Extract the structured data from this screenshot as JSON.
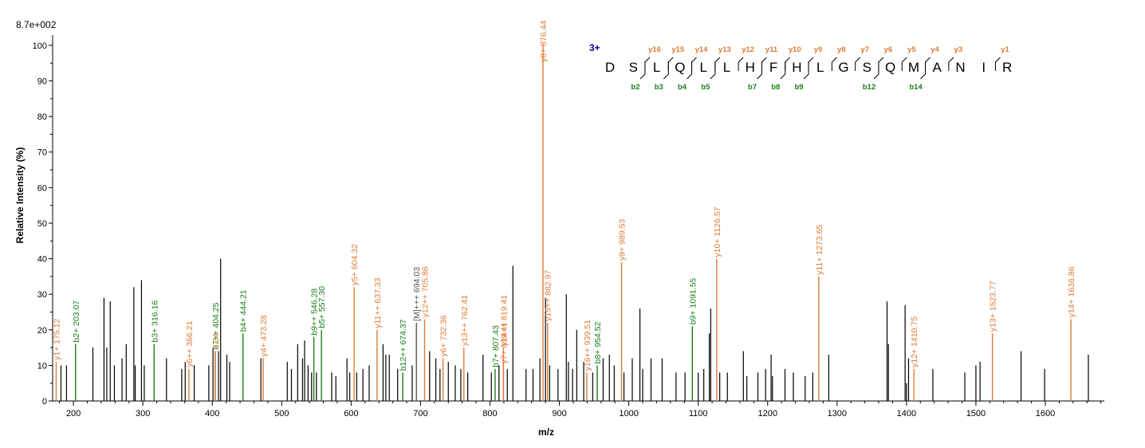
{
  "colors": {
    "y_ion": "#e07b39",
    "b_ion": "#1a7f1a",
    "unmatched": "#000000",
    "precursor": "#555555",
    "charge": "#00008b"
  },
  "chart_data": {
    "type": "bar",
    "max_intensity_label": "8.7e+002",
    "xlabel": "m/z",
    "ylabel": "Relative   Intensity (%)",
    "xlim": [
      170,
      1685
    ],
    "ylim": [
      0,
      102
    ],
    "x_ticks": [
      200,
      300,
      400,
      500,
      600,
      700,
      800,
      900,
      1000,
      1100,
      1200,
      1300,
      1400,
      1500,
      1600
    ],
    "y_ticks": [
      0,
      10,
      20,
      30,
      40,
      50,
      60,
      70,
      80,
      90,
      100
    ],
    "annotated_peaks": [
      {
        "mz": 175.12,
        "intensity": 11,
        "type": "y",
        "label": "y1+ 175.12"
      },
      {
        "mz": 203.07,
        "intensity": 16,
        "type": "b",
        "label": "b2+ 203.07"
      },
      {
        "mz": 316.16,
        "intensity": 16,
        "type": "b",
        "label": "b3+ 316.16"
      },
      {
        "mz": 366.21,
        "intensity": 9,
        "type": "y",
        "label": "y6++ 366.21"
      },
      {
        "mz": 404.25,
        "intensity": 14,
        "type": "b",
        "label": "b7++ 404.25"
      },
      {
        "mz": 404.25,
        "intensity": 14,
        "type": "y",
        "label": "2.24"
      },
      {
        "mz": 444.21,
        "intensity": 19,
        "type": "b",
        "label": "b4+ 444.21"
      },
      {
        "mz": 473.28,
        "intensity": 12,
        "type": "y",
        "label": "y4+ 473.28"
      },
      {
        "mz": 546.28,
        "intensity": 18,
        "type": "b",
        "label": "b9++ 546.28"
      },
      {
        "mz": 557.3,
        "intensity": 20,
        "type": "b",
        "label": "b5+ 557.30"
      },
      {
        "mz": 604.32,
        "intensity": 32,
        "type": "y",
        "label": "y5+ 604.32"
      },
      {
        "mz": 637.33,
        "intensity": 20,
        "type": "y",
        "label": "y11++ 637.33"
      },
      {
        "mz": 674.37,
        "intensity": 8,
        "type": "b",
        "label": "b12++ 674.37"
      },
      {
        "mz": 694.03,
        "intensity": 22,
        "type": "p",
        "label": "[M]+++ 694.03"
      },
      {
        "mz": 705.86,
        "intensity": 23,
        "type": "y",
        "label": "y12++ 705.86"
      },
      {
        "mz": 732.36,
        "intensity": 12,
        "type": "y",
        "label": "y6+ 732.36"
      },
      {
        "mz": 762.41,
        "intensity": 15,
        "type": "y",
        "label": "y13++ 762.41"
      },
      {
        "mz": 807.43,
        "intensity": 9,
        "type": "b",
        "label": "b7+ 807.43"
      },
      {
        "mz": 819.41,
        "intensity": 10,
        "type": "y",
        "label": "y7+ 819.41"
      },
      {
        "mz": 819.41,
        "intensity": 15,
        "type": "y",
        "label": "y14++ 819.41"
      },
      {
        "mz": 876.44,
        "intensity": 100,
        "type": "y",
        "label": "y8+ 876.44"
      },
      {
        "mz": 882.97,
        "intensity": 22,
        "type": "y",
        "label": "y15++ 882.97"
      },
      {
        "mz": 939.51,
        "intensity": 8,
        "type": "y",
        "label": "y16++ 939.51"
      },
      {
        "mz": 954.52,
        "intensity": 10,
        "type": "b",
        "label": "b8+ 954.52"
      },
      {
        "mz": 989.53,
        "intensity": 39,
        "type": "y",
        "label": "y9+ 989.53"
      },
      {
        "mz": 1091.55,
        "intensity": 21,
        "type": "b",
        "label": "b9+ 1091.55"
      },
      {
        "mz": 1126.57,
        "intensity": 40,
        "type": "y",
        "label": "y10+ 1126.57"
      },
      {
        "mz": 1273.65,
        "intensity": 35,
        "type": "y",
        "label": "y11+ 1273.65"
      },
      {
        "mz": 1410.75,
        "intensity": 9,
        "type": "y",
        "label": "y12+ 1410.75"
      },
      {
        "mz": 1523.77,
        "intensity": 19,
        "type": "y",
        "label": "y13+ 1523.77"
      },
      {
        "mz": 1636.86,
        "intensity": 23,
        "type": "y",
        "label": "y14+ 1636.86"
      }
    ],
    "unmatched_peaks": [
      [
        182,
        10
      ],
      [
        190,
        10
      ],
      [
        228,
        15
      ],
      [
        244,
        29
      ],
      [
        248,
        15
      ],
      [
        253,
        28
      ],
      [
        259,
        10
      ],
      [
        270,
        12
      ],
      [
        276,
        16
      ],
      [
        287,
        32
      ],
      [
        289,
        10
      ],
      [
        298,
        34
      ],
      [
        302,
        10
      ],
      [
        334,
        12
      ],
      [
        356,
        9
      ],
      [
        361,
        11
      ],
      [
        374,
        10
      ],
      [
        395,
        10
      ],
      [
        401,
        15
      ],
      [
        409,
        14
      ],
      [
        412,
        40
      ],
      [
        421,
        13
      ],
      [
        425,
        11
      ],
      [
        470,
        12
      ],
      [
        508,
        11
      ],
      [
        514,
        9
      ],
      [
        523,
        16
      ],
      [
        530,
        12
      ],
      [
        533,
        17
      ],
      [
        538,
        10
      ],
      [
        543,
        8
      ],
      [
        550,
        8
      ],
      [
        572,
        8
      ],
      [
        578,
        7
      ],
      [
        594,
        12
      ],
      [
        598,
        8
      ],
      [
        608,
        8
      ],
      [
        617,
        9
      ],
      [
        626,
        10
      ],
      [
        646,
        16
      ],
      [
        650,
        13
      ],
      [
        655,
        13
      ],
      [
        667,
        9
      ],
      [
        688,
        10
      ],
      [
        713,
        14
      ],
      [
        722,
        12
      ],
      [
        728,
        9
      ],
      [
        740,
        11
      ],
      [
        750,
        10
      ],
      [
        758,
        9
      ],
      [
        768,
        8
      ],
      [
        790,
        13
      ],
      [
        802,
        8
      ],
      [
        813,
        10
      ],
      [
        825,
        9
      ],
      [
        833,
        38
      ],
      [
        852,
        9
      ],
      [
        862,
        9
      ],
      [
        872,
        12
      ],
      [
        880,
        29
      ],
      [
        886,
        10
      ],
      [
        898,
        9
      ],
      [
        910,
        30
      ],
      [
        913,
        11
      ],
      [
        919,
        9
      ],
      [
        925,
        20
      ],
      [
        935,
        11
      ],
      [
        948,
        8
      ],
      [
        963,
        12
      ],
      [
        972,
        13
      ],
      [
        979,
        10
      ],
      [
        993,
        8
      ],
      [
        1005,
        12
      ],
      [
        1016,
        26
      ],
      [
        1020,
        9
      ],
      [
        1032,
        12
      ],
      [
        1048,
        12
      ],
      [
        1068,
        8
      ],
      [
        1081,
        8
      ],
      [
        1100,
        8
      ],
      [
        1108,
        9
      ],
      [
        1116,
        19
      ],
      [
        1118,
        26
      ],
      [
        1131,
        8
      ],
      [
        1142,
        8
      ],
      [
        1165,
        14
      ],
      [
        1170,
        7
      ],
      [
        1186,
        8
      ],
      [
        1197,
        9
      ],
      [
        1205,
        13
      ],
      [
        1207,
        7
      ],
      [
        1225,
        9
      ],
      [
        1237,
        8
      ],
      [
        1254,
        7
      ],
      [
        1265,
        8
      ],
      [
        1288,
        13
      ],
      [
        1372,
        28
      ],
      [
        1374,
        16
      ],
      [
        1398,
        27
      ],
      [
        1400,
        5
      ],
      [
        1403,
        12
      ],
      [
        1438,
        9
      ],
      [
        1484,
        8
      ],
      [
        1500,
        10
      ],
      [
        1506,
        11
      ],
      [
        1565,
        14
      ],
      [
        1599,
        9
      ],
      [
        1662,
        13
      ]
    ],
    "sequence": {
      "charge_label": "3+",
      "residues": [
        "D",
        "S",
        "L",
        "Q",
        "L",
        "L",
        "H",
        "F",
        "H",
        "L",
        "G",
        "S",
        "Q",
        "M",
        "A",
        "N",
        "I",
        "R"
      ],
      "y_ions": [
        {
          "label": "y16",
          "after": 2
        },
        {
          "label": "y15",
          "after": 3
        },
        {
          "label": "y14",
          "after": 4
        },
        {
          "label": "y13",
          "after": 5
        },
        {
          "label": "y12",
          "after": 6
        },
        {
          "label": "y11",
          "after": 7
        },
        {
          "label": "y10",
          "after": 8
        },
        {
          "label": "y9",
          "after": 9
        },
        {
          "label": "y8",
          "after": 10
        },
        {
          "label": "y7",
          "after": 11
        },
        {
          "label": "y6",
          "after": 12
        },
        {
          "label": "y5",
          "after": 13
        },
        {
          "label": "y4",
          "after": 14
        },
        {
          "label": "y3",
          "after": 15
        },
        {
          "label": "y1",
          "after": 17
        }
      ],
      "b_ions": [
        {
          "label": "b2",
          "after": 2
        },
        {
          "label": "b3",
          "after": 3
        },
        {
          "label": "b4",
          "after": 4
        },
        {
          "label": "b5",
          "after": 5
        },
        {
          "label": "b7",
          "after": 7
        },
        {
          "label": "b8",
          "after": 8
        },
        {
          "label": "b9",
          "after": 9
        },
        {
          "label": "b12",
          "after": 12
        },
        {
          "label": "b14",
          "after": 14
        }
      ]
    }
  }
}
